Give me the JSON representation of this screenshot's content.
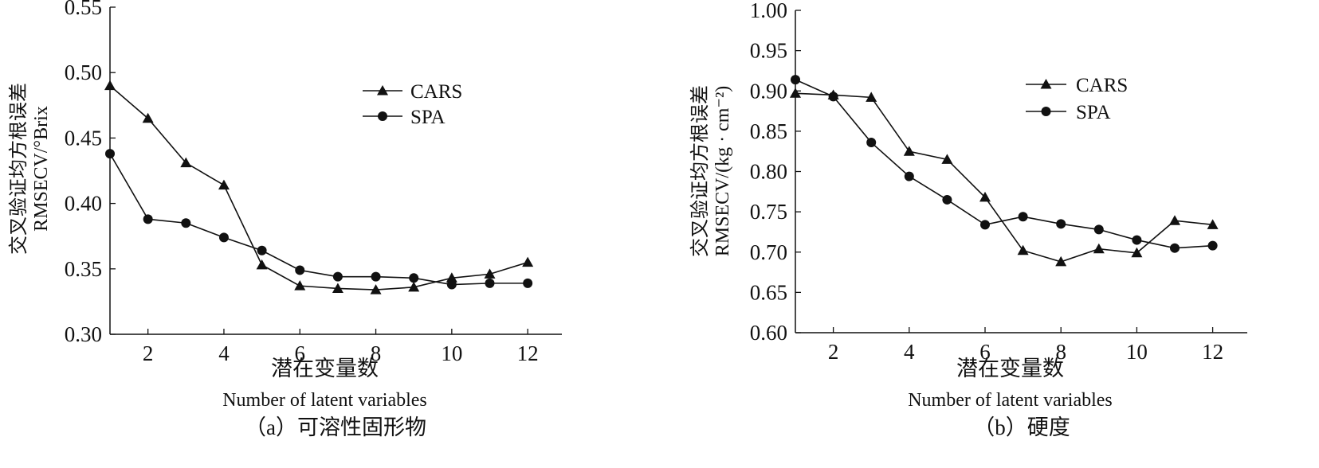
{
  "chart_data": [
    {
      "type": "line",
      "caption": "（a）可溶性固形物",
      "xlabel_cn": "潜在变量数",
      "xlabel_en": "Number of latent variables",
      "ylabel_cn": "交叉验证均方根误差",
      "ylabel_en": "RMSECV/°Brix",
      "xlim": [
        1,
        12.9
      ],
      "ylim": [
        0.3,
        0.55
      ],
      "xticks": [
        2,
        4,
        6,
        8,
        10,
        12
      ],
      "yticks": [
        "0.30",
        "0.35",
        "0.40",
        "0.45",
        "0.50",
        "0.55"
      ],
      "grid": false,
      "legend_position": "top-right",
      "x": [
        1,
        2,
        3,
        4,
        5,
        6,
        7,
        8,
        9,
        10,
        11,
        12
      ],
      "series": [
        {
          "name": "CARS",
          "marker": "triangle",
          "values": [
            0.49,
            0.465,
            0.431,
            0.414,
            0.353,
            0.337,
            0.335,
            0.334,
            0.336,
            0.343,
            0.346,
            0.355
          ]
        },
        {
          "name": "SPA",
          "marker": "circle",
          "values": [
            0.438,
            0.388,
            0.385,
            0.374,
            0.364,
            0.349,
            0.344,
            0.344,
            0.343,
            0.338,
            0.339,
            0.339
          ]
        }
      ]
    },
    {
      "type": "line",
      "caption": "（b）硬度",
      "xlabel_cn": "潜在变量数",
      "xlabel_en": "Number of latent variables",
      "ylabel_cn": "交叉验证均方根误差",
      "ylabel_en": "RMSECV/(kg · cm⁻²)",
      "xlim": [
        1,
        13.4
      ],
      "ylim": [
        0.6,
        1.0
      ],
      "xticks": [
        2,
        4,
        6,
        8,
        10,
        12
      ],
      "yticks": [
        "0.60",
        "0.65",
        "0.70",
        "0.75",
        "0.80",
        "0.85",
        "0.90",
        "0.95",
        "1.00"
      ],
      "grid": false,
      "legend_position": "top-right",
      "x": [
        1,
        2,
        3,
        4,
        5,
        6,
        7,
        8,
        9,
        10,
        11,
        12
      ],
      "series": [
        {
          "name": "CARS",
          "marker": "triangle",
          "values": [
            0.897,
            0.895,
            0.892,
            0.825,
            0.815,
            0.768,
            0.702,
            0.688,
            0.704,
            0.699,
            0.739,
            0.734
          ]
        },
        {
          "name": "SPA",
          "marker": "circle",
          "values": [
            0.914,
            0.893,
            0.836,
            0.794,
            0.765,
            0.734,
            0.744,
            0.735,
            0.728,
            0.715,
            0.705,
            0.708
          ]
        }
      ]
    }
  ]
}
